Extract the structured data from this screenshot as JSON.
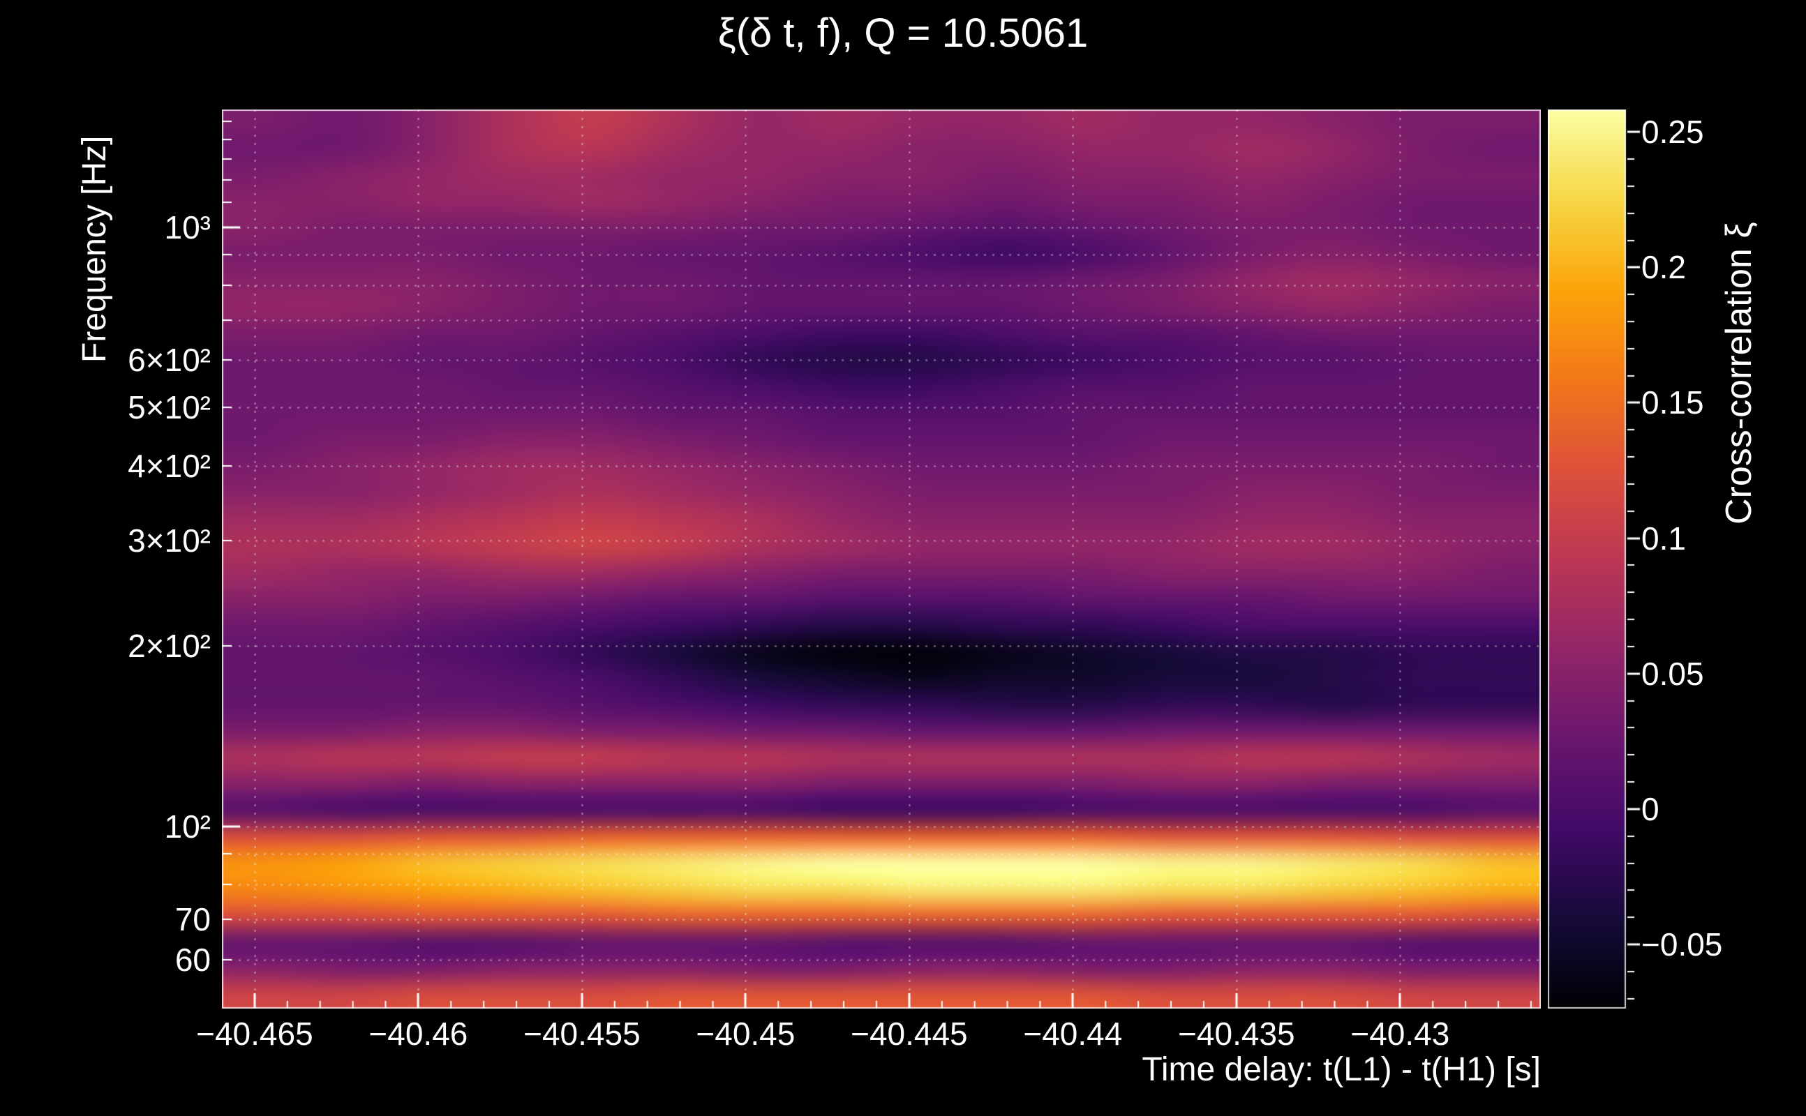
{
  "background_color": "#000000",
  "text_color": "#ffffff",
  "chart_data": {
    "type": "heatmap",
    "title": "ξ(δ t, f), Q = 10.5061",
    "q": 10.5061,
    "xlabel": "Time delay: t(L1) - t(H1) [s]",
    "ylabel": "Frequency [Hz]",
    "colorbar_label": "Cross-correlation ξ",
    "x_range": [
      -40.466,
      -40.4257
    ],
    "y_range_hz": [
      49.7,
      1571
    ],
    "y_scale": "log",
    "grid": "dotted-white",
    "color_range": [
      -0.0737,
      0.2583
    ],
    "colormap": "inferno",
    "colormap_stops": [
      [
        0,
        0,
        4
      ],
      [
        22,
        11,
        57
      ],
      [
        66,
        10,
        104
      ],
      [
        106,
        23,
        110
      ],
      [
        147,
        38,
        103
      ],
      [
        188,
        55,
        84
      ],
      [
        221,
        81,
        58
      ],
      [
        243,
        120,
        25
      ],
      [
        252,
        165,
        10
      ],
      [
        246,
        215,
        70
      ],
      [
        252,
        255,
        164
      ]
    ],
    "x_ticks": [
      {
        "value": -40.465,
        "label": "−40.465"
      },
      {
        "value": -40.46,
        "label": "−40.46"
      },
      {
        "value": -40.455,
        "label": "−40.455"
      },
      {
        "value": -40.45,
        "label": "−40.45"
      },
      {
        "value": -40.445,
        "label": "−40.445"
      },
      {
        "value": -40.44,
        "label": "−40.44"
      },
      {
        "value": -40.435,
        "label": "−40.435"
      },
      {
        "value": -40.43,
        "label": "−40.43"
      }
    ],
    "x_minor_step": 0.001,
    "y_ticks": [
      {
        "value": 1000,
        "label": "10³"
      },
      {
        "value": 600,
        "label": "6×10²"
      },
      {
        "value": 500,
        "label": "5×10²"
      },
      {
        "value": 400,
        "label": "4×10²"
      },
      {
        "value": 300,
        "label": "3×10²"
      },
      {
        "value": 200,
        "label": "2×10²"
      },
      {
        "value": 100,
        "label": "10²"
      },
      {
        "value": 70,
        "label": "70"
      },
      {
        "value": 60,
        "label": "60"
      }
    ],
    "y_tick_all_hz": [
      60,
      70,
      80,
      90,
      100,
      200,
      300,
      400,
      500,
      600,
      700,
      800,
      900,
      1000,
      1100,
      1200,
      1300,
      1400,
      1500
    ],
    "grid_y_hz": [
      60,
      70,
      80,
      90,
      100,
      200,
      300,
      400,
      500,
      600,
      700,
      800,
      900,
      1000
    ],
    "colorbar_ticks": [
      {
        "value": 0.25,
        "label": "0.25"
      },
      {
        "value": 0.2,
        "label": "0.2"
      },
      {
        "value": 0.15,
        "label": "0.15"
      },
      {
        "value": 0.1,
        "label": "0.1"
      },
      {
        "value": 0.05,
        "label": "0.05"
      },
      {
        "value": 0,
        "label": "0"
      },
      {
        "value": -0.05,
        "label": "−0.05"
      }
    ],
    "colorbar_minor_step": 0.01,
    "rows_order": "bottom_to_top",
    "x_centers": [
      -40.466,
      -40.4633,
      -40.4606,
      -40.4579,
      -40.4553,
      -40.4526,
      -40.4499,
      -40.4472,
      -40.4445,
      -40.4418,
      -40.4392,
      -40.4365,
      -40.4338,
      -40.4311,
      -40.4284,
      -40.4257
    ],
    "row_freqs_hz": [
      50.0,
      55.5,
      61.6,
      68.4,
      75.9,
      84.2,
      93.5,
      103.8,
      115.2,
      127.9,
      141.9,
      157.5,
      174.8,
      194.0,
      215.3,
      239.0,
      265.3,
      294.4,
      326.8,
      362.7,
      402.5,
      446.7,
      495.8,
      550.3,
      610.8,
      677.9,
      752.4,
      835.1,
      926.8,
      1028.7,
      1141.7,
      1267.2,
      1406.5,
      1561.0
    ],
    "values": [
      [
        0.11,
        0.11,
        0.12,
        0.12,
        0.12,
        0.13,
        0.13,
        0.13,
        0.13,
        0.13,
        0.13,
        0.12,
        0.12,
        0.12,
        0.11,
        0.11
      ],
      [
        0.05,
        0.04,
        0.04,
        0.05,
        0.05,
        0.05,
        0.04,
        0.04,
        0.05,
        0.05,
        0.04,
        0.04,
        0.05,
        0.05,
        0.04,
        0.04
      ],
      [
        0.02,
        0.02,
        0.01,
        0.01,
        0.02,
        0.02,
        0.02,
        0.01,
        0.01,
        0.01,
        0.02,
        0.02,
        0.02,
        0.02,
        0.01,
        0.01
      ],
      [
        0.12,
        0.12,
        0.13,
        0.13,
        0.13,
        0.14,
        0.14,
        0.14,
        0.14,
        0.14,
        0.14,
        0.13,
        0.13,
        0.13,
        0.13,
        0.12
      ],
      [
        0.17,
        0.18,
        0.19,
        0.2,
        0.21,
        0.22,
        0.23,
        0.23,
        0.24,
        0.24,
        0.24,
        0.23,
        0.23,
        0.22,
        0.21,
        0.2
      ],
      [
        0.18,
        0.19,
        0.21,
        0.22,
        0.23,
        0.24,
        0.25,
        0.26,
        0.26,
        0.26,
        0.26,
        0.25,
        0.25,
        0.24,
        0.23,
        0.21
      ],
      [
        0.12,
        0.12,
        0.13,
        0.13,
        0.14,
        0.14,
        0.14,
        0.14,
        0.14,
        0.14,
        0.14,
        0.13,
        0.13,
        0.13,
        0.12,
        0.12
      ],
      [
        0.01,
        0,
        0,
        0,
        0,
        0,
        0,
        -0.01,
        -0.01,
        -0.01,
        0,
        0,
        0,
        0,
        0,
        0.01
      ],
      [
        0.05,
        0.05,
        0.04,
        0.05,
        0.05,
        0.05,
        0.05,
        0.04,
        0.04,
        0.04,
        0.04,
        0.05,
        0.05,
        0.04,
        0.04,
        0.04
      ],
      [
        0.08,
        0.09,
        0.09,
        0.1,
        0.1,
        0.09,
        0.09,
        0.08,
        0.08,
        0.08,
        0.08,
        0.08,
        0.09,
        0.09,
        0.08,
        0.07
      ],
      [
        0.04,
        0.04,
        0.05,
        0.05,
        0.04,
        0.04,
        0.03,
        0.03,
        0.02,
        0.02,
        0.02,
        0.03,
        0.03,
        0.03,
        0.03,
        0.03
      ],
      [
        0.02,
        0.02,
        0.02,
        0.02,
        0.01,
        0,
        -0.01,
        -0.02,
        -0.02,
        -0.03,
        -0.03,
        -0.02,
        -0.02,
        -0.03,
        -0.02,
        -0.02
      ],
      [
        0.02,
        0.02,
        0.02,
        0.01,
        0,
        -0.02,
        -0.04,
        -0.05,
        -0.06,
        -0.05,
        -0.05,
        -0.04,
        -0.04,
        -0.03,
        -0.02,
        -0.02
      ],
      [
        0.02,
        0.02,
        0.01,
        0,
        -0.02,
        -0.04,
        -0.06,
        -0.07,
        -0.07,
        -0.06,
        -0.05,
        -0.04,
        -0.03,
        -0.03,
        -0.02,
        -0.02
      ],
      [
        0.03,
        0.03,
        0.02,
        0.01,
        0,
        -0.01,
        -0.02,
        -0.03,
        -0.03,
        -0.02,
        -0.02,
        -0.01,
        0,
        0,
        0,
        0
      ],
      [
        0.05,
        0.05,
        0.04,
        0.04,
        0.03,
        0.02,
        0.02,
        0.01,
        0.01,
        0.01,
        0.02,
        0.02,
        0.02,
        0.03,
        0.03,
        0.03
      ],
      [
        0.07,
        0.06,
        0.06,
        0.07,
        0.07,
        0.06,
        0.05,
        0.04,
        0.04,
        0.04,
        0.04,
        0.05,
        0.05,
        0.05,
        0.05,
        0.04
      ],
      [
        0.08,
        0.08,
        0.09,
        0.1,
        0.11,
        0.1,
        0.08,
        0.07,
        0.06,
        0.06,
        0.06,
        0.06,
        0.07,
        0.07,
        0.06,
        0.05
      ],
      [
        0.07,
        0.07,
        0.08,
        0.09,
        0.1,
        0.09,
        0.08,
        0.06,
        0.05,
        0.05,
        0.05,
        0.05,
        0.06,
        0.06,
        0.05,
        0.05
      ],
      [
        0.05,
        0.05,
        0.06,
        0.07,
        0.08,
        0.07,
        0.06,
        0.05,
        0.04,
        0.04,
        0.04,
        0.04,
        0.05,
        0.05,
        0.04,
        0.04
      ],
      [
        0.04,
        0.05,
        0.06,
        0.07,
        0.07,
        0.06,
        0.05,
        0.04,
        0.03,
        0.03,
        0.03,
        0.04,
        0.04,
        0.04,
        0.04,
        0.03
      ],
      [
        0.03,
        0.04,
        0.04,
        0.05,
        0.05,
        0.04,
        0.03,
        0.02,
        0.02,
        0.02,
        0.02,
        0.03,
        0.03,
        0.03,
        0.03,
        0.03
      ],
      [
        0.03,
        0.03,
        0.03,
        0.03,
        0.03,
        0.02,
        0.02,
        0.01,
        0.01,
        0.01,
        0.02,
        0.02,
        0.02,
        0.02,
        0.02,
        0.02
      ],
      [
        0.03,
        0.03,
        0.03,
        0.02,
        0.02,
        0.01,
        0,
        -0.01,
        -0.01,
        0,
        0.01,
        0.01,
        0.02,
        0.02,
        0.02,
        0.02
      ],
      [
        0.03,
        0.03,
        0.02,
        0.02,
        0.01,
        0,
        -0.02,
        -0.03,
        -0.03,
        -0.02,
        -0.01,
        0,
        0.01,
        0.01,
        0.02,
        0.02
      ],
      [
        0.04,
        0.04,
        0.03,
        0.03,
        0.02,
        0.01,
        0,
        -0.01,
        -0.01,
        0,
        0.01,
        0.01,
        0.02,
        0.03,
        0.03,
        0.03
      ],
      [
        0.06,
        0.06,
        0.05,
        0.04,
        0.03,
        0.03,
        0.02,
        0.02,
        0.02,
        0.02,
        0.03,
        0.04,
        0.05,
        0.06,
        0.05,
        0.04
      ],
      [
        0.05,
        0.05,
        0.05,
        0.04,
        0.03,
        0.03,
        0.02,
        0.02,
        0.02,
        0.02,
        0.03,
        0.04,
        0.06,
        0.07,
        0.06,
        0.05
      ],
      [
        0.04,
        0.04,
        0.04,
        0.03,
        0.03,
        0.02,
        0.02,
        0.01,
        0,
        -0.01,
        0,
        0.02,
        0.04,
        0.05,
        0.04,
        0.03
      ],
      [
        0.05,
        0.04,
        0.04,
        0.04,
        0.04,
        0.04,
        0.03,
        0.03,
        0.02,
        0.01,
        0.02,
        0.03,
        0.04,
        0.04,
        0.03,
        0.03
      ],
      [
        0.05,
        0.05,
        0.06,
        0.06,
        0.07,
        0.06,
        0.05,
        0.04,
        0.04,
        0.03,
        0.04,
        0.04,
        0.05,
        0.04,
        0.03,
        0.03
      ],
      [
        0.04,
        0.05,
        0.06,
        0.07,
        0.07,
        0.06,
        0.06,
        0.05,
        0.05,
        0.04,
        0.05,
        0.05,
        0.06,
        0.05,
        0.04,
        0.04
      ],
      [
        0.03,
        0.03,
        0.05,
        0.08,
        0.09,
        0.07,
        0.06,
        0.06,
        0.05,
        0.05,
        0.06,
        0.06,
        0.07,
        0.06,
        0.04,
        0.03
      ],
      [
        0.04,
        0.03,
        0.05,
        0.08,
        0.1,
        0.08,
        0.06,
        0.07,
        0.06,
        0.06,
        0.07,
        0.06,
        0.06,
        0.05,
        0.04,
        0.04
      ]
    ]
  }
}
